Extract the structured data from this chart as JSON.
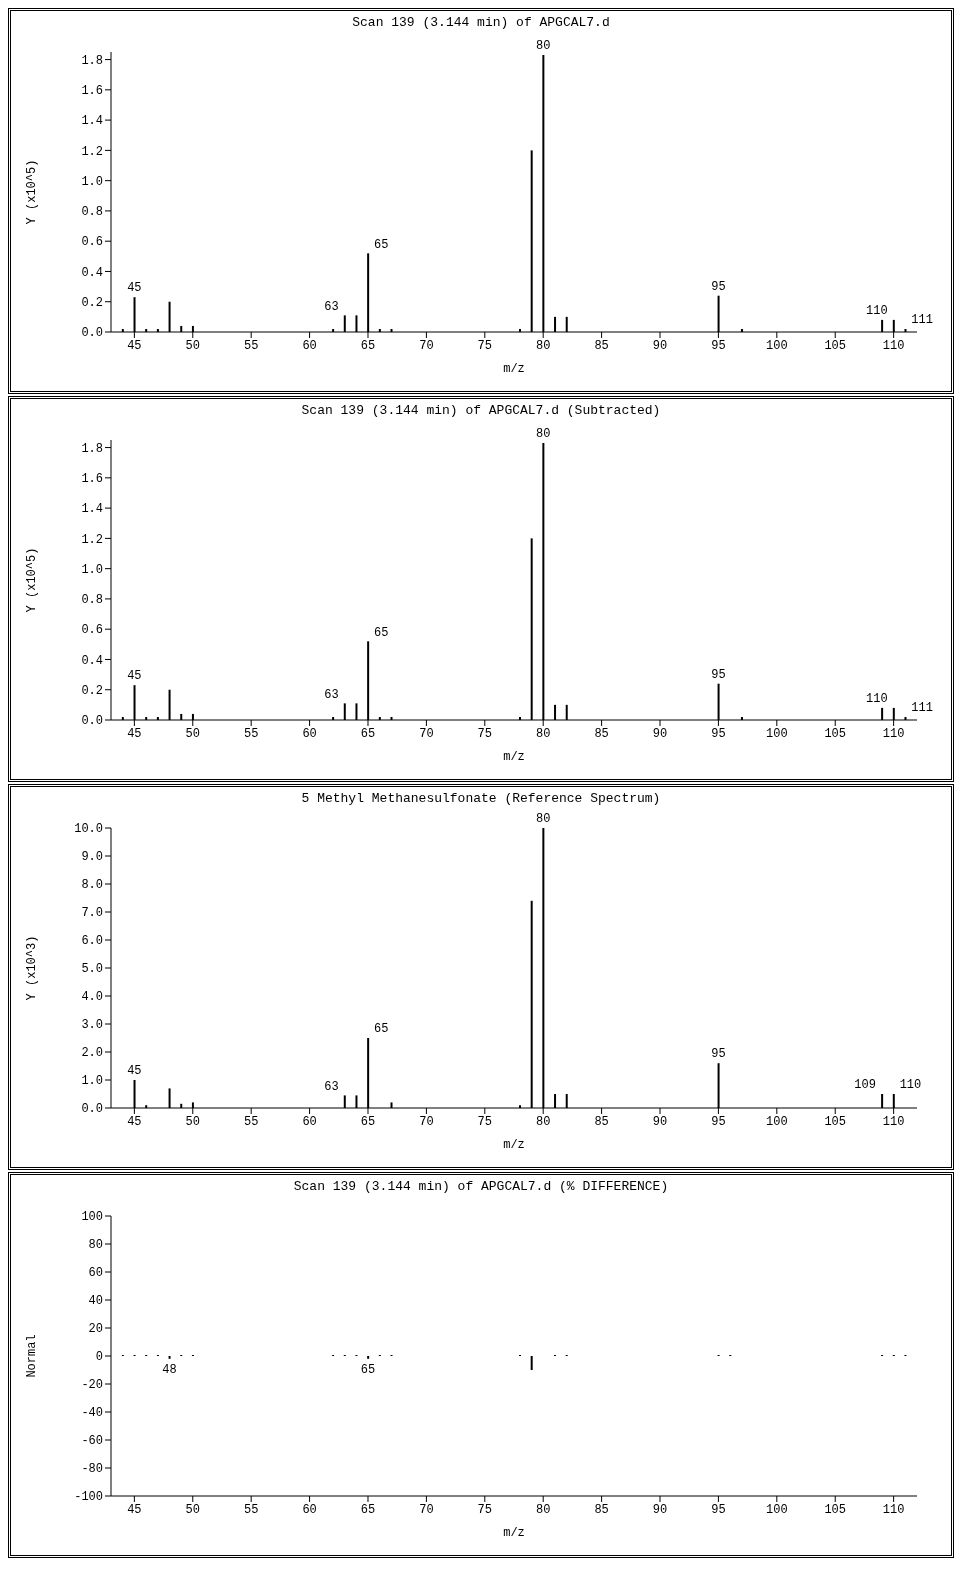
{
  "chart_data": [
    {
      "type": "bar",
      "title": "Scan 139 (3.144 min) of APGCAL7.d",
      "xlabel": "m/z",
      "ylabel": "Y (x10^5)",
      "color": "#000000",
      "x": [
        44,
        45,
        46,
        47,
        48,
        49,
        50,
        62,
        63,
        64,
        65,
        66,
        67,
        78,
        79,
        80,
        81,
        82,
        95,
        97,
        109,
        110,
        111
      ],
      "values": [
        0.02,
        0.23,
        0.02,
        0.02,
        0.2,
        0.04,
        0.04,
        0.02,
        0.11,
        0.11,
        0.52,
        0.02,
        0.02,
        0.02,
        1.2,
        1.83,
        0.1,
        0.1,
        0.24,
        0.02,
        0.08,
        0.08,
        0.02
      ],
      "xlim": [
        43,
        112
      ],
      "xticks": [
        45,
        50,
        55,
        60,
        65,
        70,
        75,
        80,
        85,
        90,
        95,
        100,
        105,
        110
      ],
      "ylim": [
        0,
        1.85
      ],
      "yticks": [
        {
          "value": 0,
          "label": "0.0"
        },
        0.2,
        0.4,
        0.6,
        0.8,
        {
          "value": 1,
          "label": "1.0"
        },
        1.2,
        1.4,
        1.6,
        1.8
      ],
      "annotations": [
        {
          "text": "45",
          "x": 45,
          "y": 0.23
        },
        {
          "text": "63",
          "x": 63,
          "y": 0.11
        },
        {
          "text": "65",
          "x": 65,
          "y": 0.52
        },
        {
          "text": "80",
          "x": 80,
          "y": 1.83
        },
        {
          "text": "95",
          "x": 95,
          "y": 0.24
        },
        {
          "text": "110",
          "x": 110,
          "y": 0.08
        },
        {
          "text": "111",
          "x": 111,
          "y": 0.02
        }
      ]
    },
    {
      "type": "bar",
      "title": "Scan 139 (3.144 min) of APGCAL7.d (Subtracted)",
      "xlabel": "m/z",
      "ylabel": "Y (x10^5)",
      "color": "#000000",
      "x": [
        44,
        45,
        46,
        47,
        48,
        49,
        50,
        62,
        63,
        64,
        65,
        66,
        67,
        78,
        79,
        80,
        81,
        82,
        95,
        97,
        109,
        110,
        111
      ],
      "values": [
        0.02,
        0.23,
        0.02,
        0.02,
        0.2,
        0.04,
        0.04,
        0.02,
        0.11,
        0.11,
        0.52,
        0.02,
        0.02,
        0.02,
        1.2,
        1.83,
        0.1,
        0.1,
        0.24,
        0.02,
        0.08,
        0.08,
        0.02
      ],
      "xlim": [
        43,
        112
      ],
      "xticks": [
        45,
        50,
        55,
        60,
        65,
        70,
        75,
        80,
        85,
        90,
        95,
        100,
        105,
        110
      ],
      "ylim": [
        0,
        1.85
      ],
      "yticks": [
        {
          "value": 0,
          "label": "0.0"
        },
        0.2,
        0.4,
        0.6,
        0.8,
        {
          "value": 1,
          "label": "1.0"
        },
        1.2,
        1.4,
        1.6,
        1.8
      ],
      "annotations": [
        {
          "text": "45",
          "x": 45,
          "y": 0.23
        },
        {
          "text": "63",
          "x": 63,
          "y": 0.11
        },
        {
          "text": "65",
          "x": 65,
          "y": 0.52
        },
        {
          "text": "80",
          "x": 80,
          "y": 1.83
        },
        {
          "text": "95",
          "x": 95,
          "y": 0.24
        },
        {
          "text": "110",
          "x": 110,
          "y": 0.08
        },
        {
          "text": "111",
          "x": 111,
          "y": 0.02
        }
      ]
    },
    {
      "type": "bar",
      "title": "5 Methyl Methanesulfonate (Reference Spectrum)",
      "xlabel": "m/z",
      "ylabel": "Y (x10^3)",
      "color": "#000000",
      "x": [
        45,
        46,
        48,
        49,
        50,
        63,
        64,
        65,
        67,
        78,
        79,
        80,
        81,
        82,
        95,
        109,
        110
      ],
      "values": [
        1.0,
        0.1,
        0.7,
        0.15,
        0.2,
        0.45,
        0.45,
        2.5,
        0.2,
        0.1,
        7.4,
        10.0,
        0.5,
        0.5,
        1.6,
        0.5,
        0.5
      ],
      "xlim": [
        43,
        112
      ],
      "xticks": [
        45,
        50,
        55,
        60,
        65,
        70,
        75,
        80,
        85,
        90,
        95,
        100,
        105,
        110
      ],
      "ylim": [
        0,
        10
      ],
      "yticks": [
        {
          "value": 0,
          "label": "0.0"
        },
        {
          "value": 1,
          "label": "1.0"
        },
        {
          "value": 2,
          "label": "2.0"
        },
        {
          "value": 3,
          "label": "3.0"
        },
        {
          "value": 4,
          "label": "4.0"
        },
        {
          "value": 5,
          "label": "5.0"
        },
        {
          "value": 6,
          "label": "6.0"
        },
        {
          "value": 7,
          "label": "7.0"
        },
        {
          "value": 8,
          "label": "8.0"
        },
        {
          "value": 9,
          "label": "9.0"
        },
        {
          "value": 10,
          "label": "10.0"
        }
      ],
      "annotations": [
        {
          "text": "45",
          "x": 45,
          "y": 1.0
        },
        {
          "text": "63",
          "x": 63,
          "y": 0.45
        },
        {
          "text": "65",
          "x": 65,
          "y": 2.5
        },
        {
          "text": "80",
          "x": 80,
          "y": 10.0
        },
        {
          "text": "95",
          "x": 95,
          "y": 1.6
        },
        {
          "text": "109",
          "x": 109,
          "y": 0.5
        },
        {
          "text": "110",
          "x": 110,
          "y": 0.5
        }
      ]
    },
    {
      "type": "bar",
      "title": "Scan 139 (3.144 min) of APGCAL7.d (% DIFFERENCE)",
      "xlabel": "m/z",
      "ylabel": "Normal",
      "color": "#000000",
      "x": [
        44,
        45,
        46,
        47,
        48,
        49,
        50,
        62,
        63,
        64,
        65,
        66,
        67,
        78,
        79,
        81,
        82,
        95,
        96,
        109,
        110,
        111
      ],
      "values": [
        0,
        0,
        0,
        0,
        -2,
        0,
        0,
        0,
        0,
        0,
        -2,
        0,
        0,
        0,
        -10,
        0,
        0,
        0,
        0,
        0,
        0,
        0
      ],
      "xlim": [
        43,
        112
      ],
      "xticks": [
        45,
        50,
        55,
        60,
        65,
        70,
        75,
        80,
        85,
        90,
        95,
        100,
        105,
        110
      ],
      "ylim": [
        -100,
        100
      ],
      "yticks": [
        -100,
        -80,
        -60,
        -40,
        -20,
        0,
        20,
        40,
        60,
        80,
        100
      ],
      "annotations": [
        {
          "text": "48",
          "x": 48,
          "y": -2
        },
        {
          "text": "65",
          "x": 65,
          "y": -2
        }
      ]
    }
  ]
}
